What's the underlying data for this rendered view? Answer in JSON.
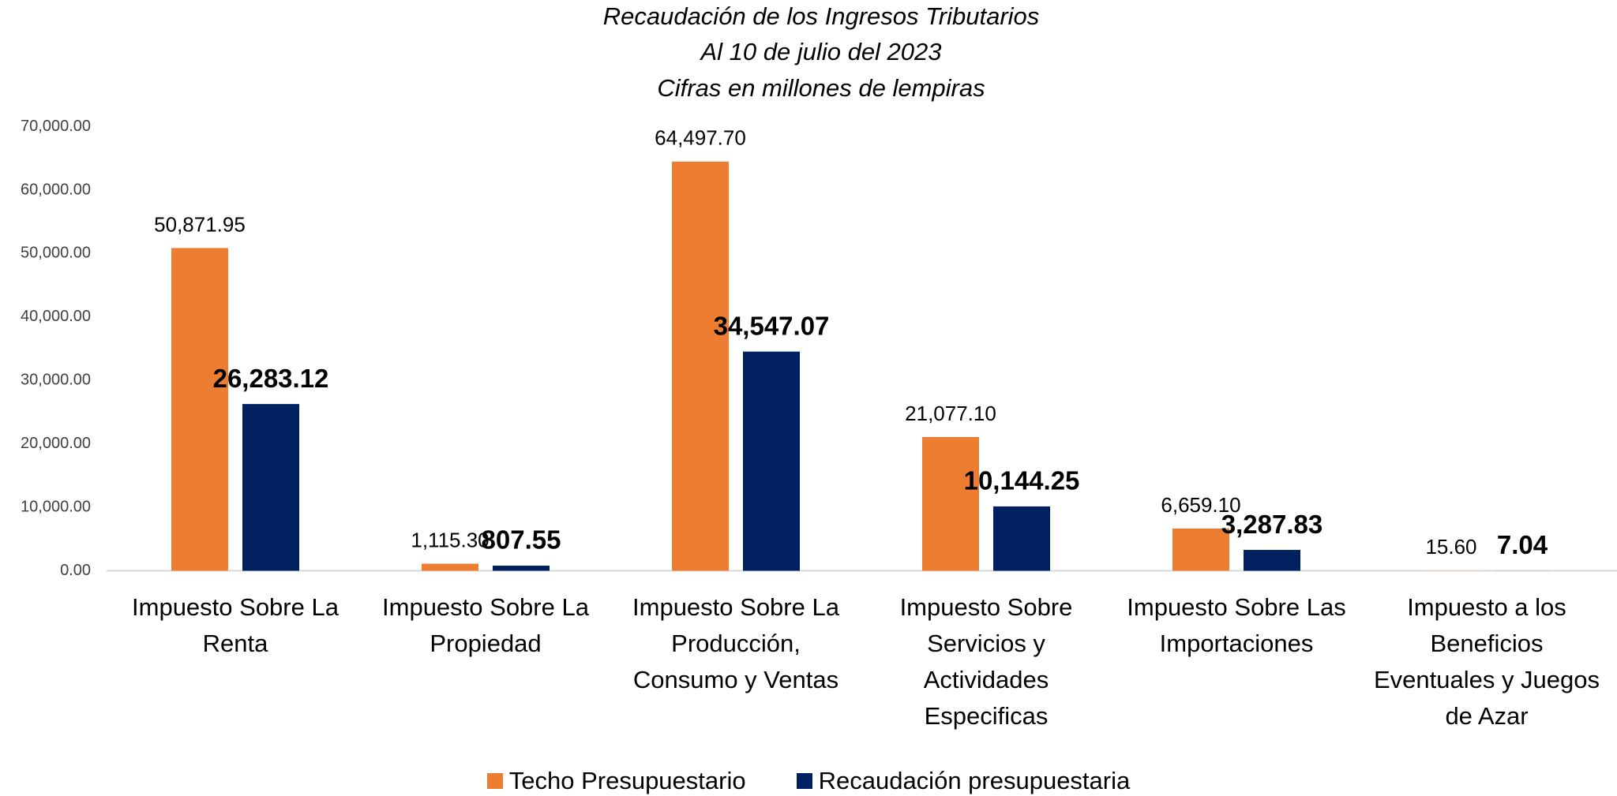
{
  "chart_data": {
    "type": "bar",
    "title": "Recaudación de los Ingresos Tributarios",
    "subtitle": [
      "Al 10 de julio del 2023",
      "Cifras en millones de lempiras"
    ],
    "categories": [
      "Impuesto Sobre La Renta",
      "Impuesto Sobre La Propiedad",
      "Impuesto Sobre La Producción, Consumo y Ventas",
      "Impuesto Sobre Servicios y Actividades Especificas",
      "Impuesto Sobre Las Importaciones",
      "Impuesto a los Beneficios Eventuales y Juegos de Azar"
    ],
    "series": [
      {
        "name": "Techo Presupuestario",
        "color": "#ED7D31",
        "values": [
          50871.95,
          1115.3,
          64497.7,
          21077.1,
          6659.1,
          15.6
        ],
        "value_labels": [
          "50,871.95",
          "1,115.30",
          "64,497.70",
          "21,077.10",
          "6,659.10",
          "15.60"
        ]
      },
      {
        "name": "Recaudación presupuestaria",
        "color": "#002060",
        "values": [
          26283.12,
          807.55,
          34547.07,
          10144.25,
          3287.83,
          7.04
        ],
        "value_labels": [
          "26,283.12",
          "807.55",
          "34,547.07",
          "10,144.25",
          "3,287.83",
          "7.04"
        ]
      }
    ],
    "ylim": [
      0,
      70000
    ],
    "yticks": [
      {
        "value": 0,
        "label": "0.00"
      },
      {
        "value": 10000,
        "label": "10,000.00"
      },
      {
        "value": 20000,
        "label": "20,000.00"
      },
      {
        "value": 30000,
        "label": "30,000.00"
      },
      {
        "value": 40000,
        "label": "40,000.00"
      },
      {
        "value": 50000,
        "label": "50,000.00"
      },
      {
        "value": 60000,
        "label": "60,000.00"
      },
      {
        "value": 70000,
        "label": "70,000.00"
      }
    ],
    "grid": false,
    "legend": "bottom"
  }
}
